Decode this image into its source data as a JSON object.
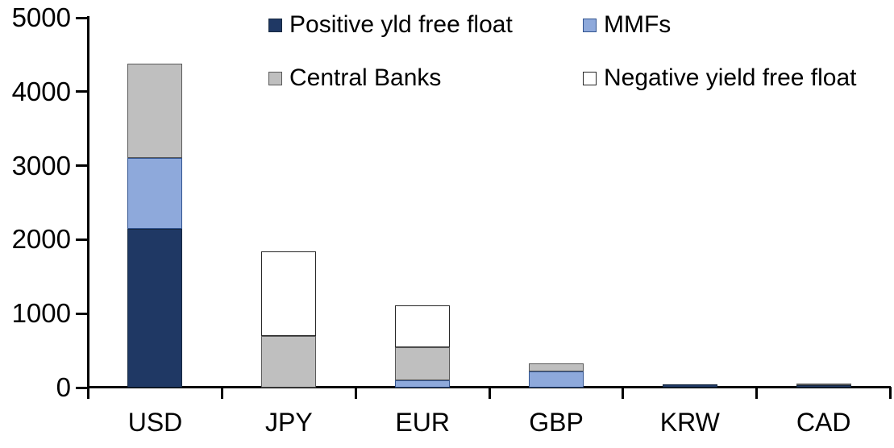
{
  "chart_data": {
    "type": "bar",
    "stacked": true,
    "title": "",
    "xlabel": "",
    "ylabel": "",
    "categories": [
      "USD",
      "JPY",
      "EUR",
      "GBP",
      "KRW",
      "CAD"
    ],
    "series": [
      {
        "name": "Positive yld free float",
        "color": "#1F3864",
        "border": "#16283F",
        "values": [
          2150,
          0,
          0,
          0,
          40,
          30
        ]
      },
      {
        "name": "MMFs",
        "color": "#8EA9DB",
        "border": "#31538F",
        "values": [
          950,
          0,
          100,
          220,
          0,
          0
        ]
      },
      {
        "name": "Central Banks",
        "color": "#BFBFBF",
        "border": "#595959",
        "values": [
          1280,
          700,
          450,
          110,
          0,
          30
        ]
      },
      {
        "name": "Negative yield free float",
        "color": "#FFFFFF",
        "border": "#262626",
        "values": [
          0,
          1140,
          560,
          0,
          0,
          0
        ]
      }
    ],
    "totals": [
      4380,
      1840,
      1110,
      330,
      40,
      60
    ],
    "ylim": [
      0,
      5000
    ],
    "yticks": [
      0,
      1000,
      2000,
      3000,
      4000,
      5000
    ],
    "grid": false,
    "legend_position": "top",
    "legend_rows": [
      [
        "Positive yld free float",
        "MMFs"
      ],
      [
        "Central Banks",
        "Negative yield free float"
      ]
    ]
  }
}
